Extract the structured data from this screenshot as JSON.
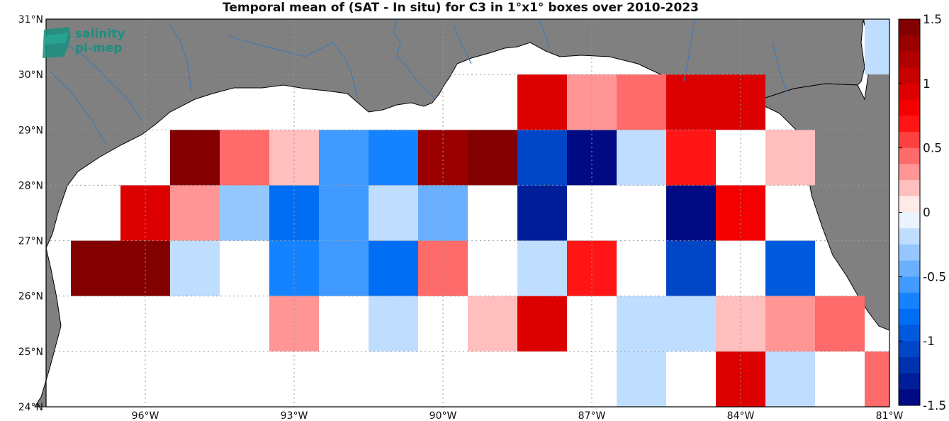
{
  "title": "Temporal mean of (SAT - In situ) for C3 in 1°x1° boxes over 2010-2023",
  "logo": {
    "line1": "salinity",
    "line2": "pi-mep",
    "icon": "salinity-wave-icon",
    "color": "#1a8f80"
  },
  "colors": {
    "land": "#808080",
    "ocean": "#ffffff",
    "coast": "#000000",
    "rivers": "#3d7ab8",
    "grid": "#9a9a9a"
  },
  "axes": {
    "lat_ticks": [
      "31°N",
      "30°N",
      "29°N",
      "28°N",
      "27°N",
      "26°N",
      "25°N",
      "24°N"
    ],
    "lon_ticks": [
      "96°W",
      "93°W",
      "90°W",
      "87°W",
      "84°W",
      "81°W"
    ]
  },
  "colorbar": {
    "ticks": [
      "1.5",
      "1",
      "0.5",
      "0",
      "-0.5",
      "-1",
      "-1.5"
    ],
    "vmin": -1.5,
    "vmax": 1.5,
    "levels": 24
  },
  "chart_data": {
    "type": "heatmap",
    "title": "Temporal mean of (SAT - In situ) for C3 in 1°x1° boxes over 2010-2023",
    "xlim": [
      -98.0,
      -81.0
    ],
    "ylim": [
      24.0,
      31.0
    ],
    "cell_size_deg": 1,
    "cells": [
      {
        "lon": -97,
        "lat": 26.5,
        "v": 1.5
      },
      {
        "lon": -96,
        "lat": 26.5,
        "v": 1.5
      },
      {
        "lon": -95,
        "lat": 26.5,
        "v": -0.25
      },
      {
        "lon": -93,
        "lat": 26.5,
        "v": -0.65
      },
      {
        "lon": -92,
        "lat": 26.5,
        "v": -0.6
      },
      {
        "lon": -91,
        "lat": 26.5,
        "v": -0.85
      },
      {
        "lon": -90,
        "lat": 26.5,
        "v": 0.45
      },
      {
        "lon": -88,
        "lat": 26.5,
        "v": -0.15
      },
      {
        "lon": -87,
        "lat": 26.5,
        "v": 0.7
      },
      {
        "lon": -85,
        "lat": 26.5,
        "v": -1.1
      },
      {
        "lon": -83,
        "lat": 26.5,
        "v": -0.95
      },
      {
        "lon": -96,
        "lat": 27.5,
        "v": 0.9
      },
      {
        "lon": -95,
        "lat": 27.5,
        "v": 0.35
      },
      {
        "lon": -94,
        "lat": 27.5,
        "v": -0.3
      },
      {
        "lon": -93,
        "lat": 27.5,
        "v": -0.85
      },
      {
        "lon": -92,
        "lat": 27.5,
        "v": -0.6
      },
      {
        "lon": -91,
        "lat": 27.5,
        "v": -0.15
      },
      {
        "lon": -90,
        "lat": 27.5,
        "v": -0.4
      },
      {
        "lon": -88,
        "lat": 27.5,
        "v": -1.3
      },
      {
        "lon": -85,
        "lat": 27.5,
        "v": -1.45
      },
      {
        "lon": -84,
        "lat": 27.5,
        "v": 0.8
      },
      {
        "lon": -95,
        "lat": 28.5,
        "v": 1.5
      },
      {
        "lon": -94,
        "lat": 28.5,
        "v": 0.45
      },
      {
        "lon": -93,
        "lat": 28.5,
        "v": 0.2
      },
      {
        "lon": -92,
        "lat": 28.5,
        "v": -0.6
      },
      {
        "lon": -91,
        "lat": 28.5,
        "v": -0.7
      },
      {
        "lon": -90,
        "lat": 28.5,
        "v": 1.3
      },
      {
        "lon": -89,
        "lat": 28.5,
        "v": 1.5
      },
      {
        "lon": -88,
        "lat": 28.5,
        "v": -1.1
      },
      {
        "lon": -87,
        "lat": 28.5,
        "v": -1.5
      },
      {
        "lon": -86,
        "lat": 28.5,
        "v": -0.15
      },
      {
        "lon": -85,
        "lat": 28.5,
        "v": 0.7
      },
      {
        "lon": -83,
        "lat": 28.5,
        "v": 0.15
      },
      {
        "lon": -88,
        "lat": 29.5,
        "v": 0.9
      },
      {
        "lon": -87,
        "lat": 29.5,
        "v": 0.25
      },
      {
        "lon": -86,
        "lat": 29.5,
        "v": 0.4
      },
      {
        "lon": -85,
        "lat": 29.5,
        "v": 0.9
      },
      {
        "lon": -84,
        "lat": 29.5,
        "v": 0.9
      },
      {
        "lon": -93,
        "lat": 25.5,
        "v": 0.3
      },
      {
        "lon": -91,
        "lat": 25.5,
        "v": -0.15
      },
      {
        "lon": -89,
        "lat": 25.5,
        "v": 0.2
      },
      {
        "lon": -88,
        "lat": 25.5,
        "v": 0.9
      },
      {
        "lon": -86,
        "lat": 25.5,
        "v": -0.15
      },
      {
        "lon": -85,
        "lat": 25.5,
        "v": -0.15
      },
      {
        "lon": -84,
        "lat": 25.5,
        "v": 0.2
      },
      {
        "lon": -83,
        "lat": 25.5,
        "v": 0.3
      },
      {
        "lon": -82,
        "lat": 25.5,
        "v": 0.45
      },
      {
        "lon": -86,
        "lat": 24.5,
        "v": -0.25
      },
      {
        "lon": -84,
        "lat": 24.5,
        "v": 0.9
      },
      {
        "lon": -83,
        "lat": 24.5,
        "v": -0.15
      },
      {
        "lon": -81,
        "lat": 24.5,
        "v": 0.45
      },
      {
        "lon": -81,
        "lat": 30.5,
        "v": -0.15
      }
    ]
  }
}
